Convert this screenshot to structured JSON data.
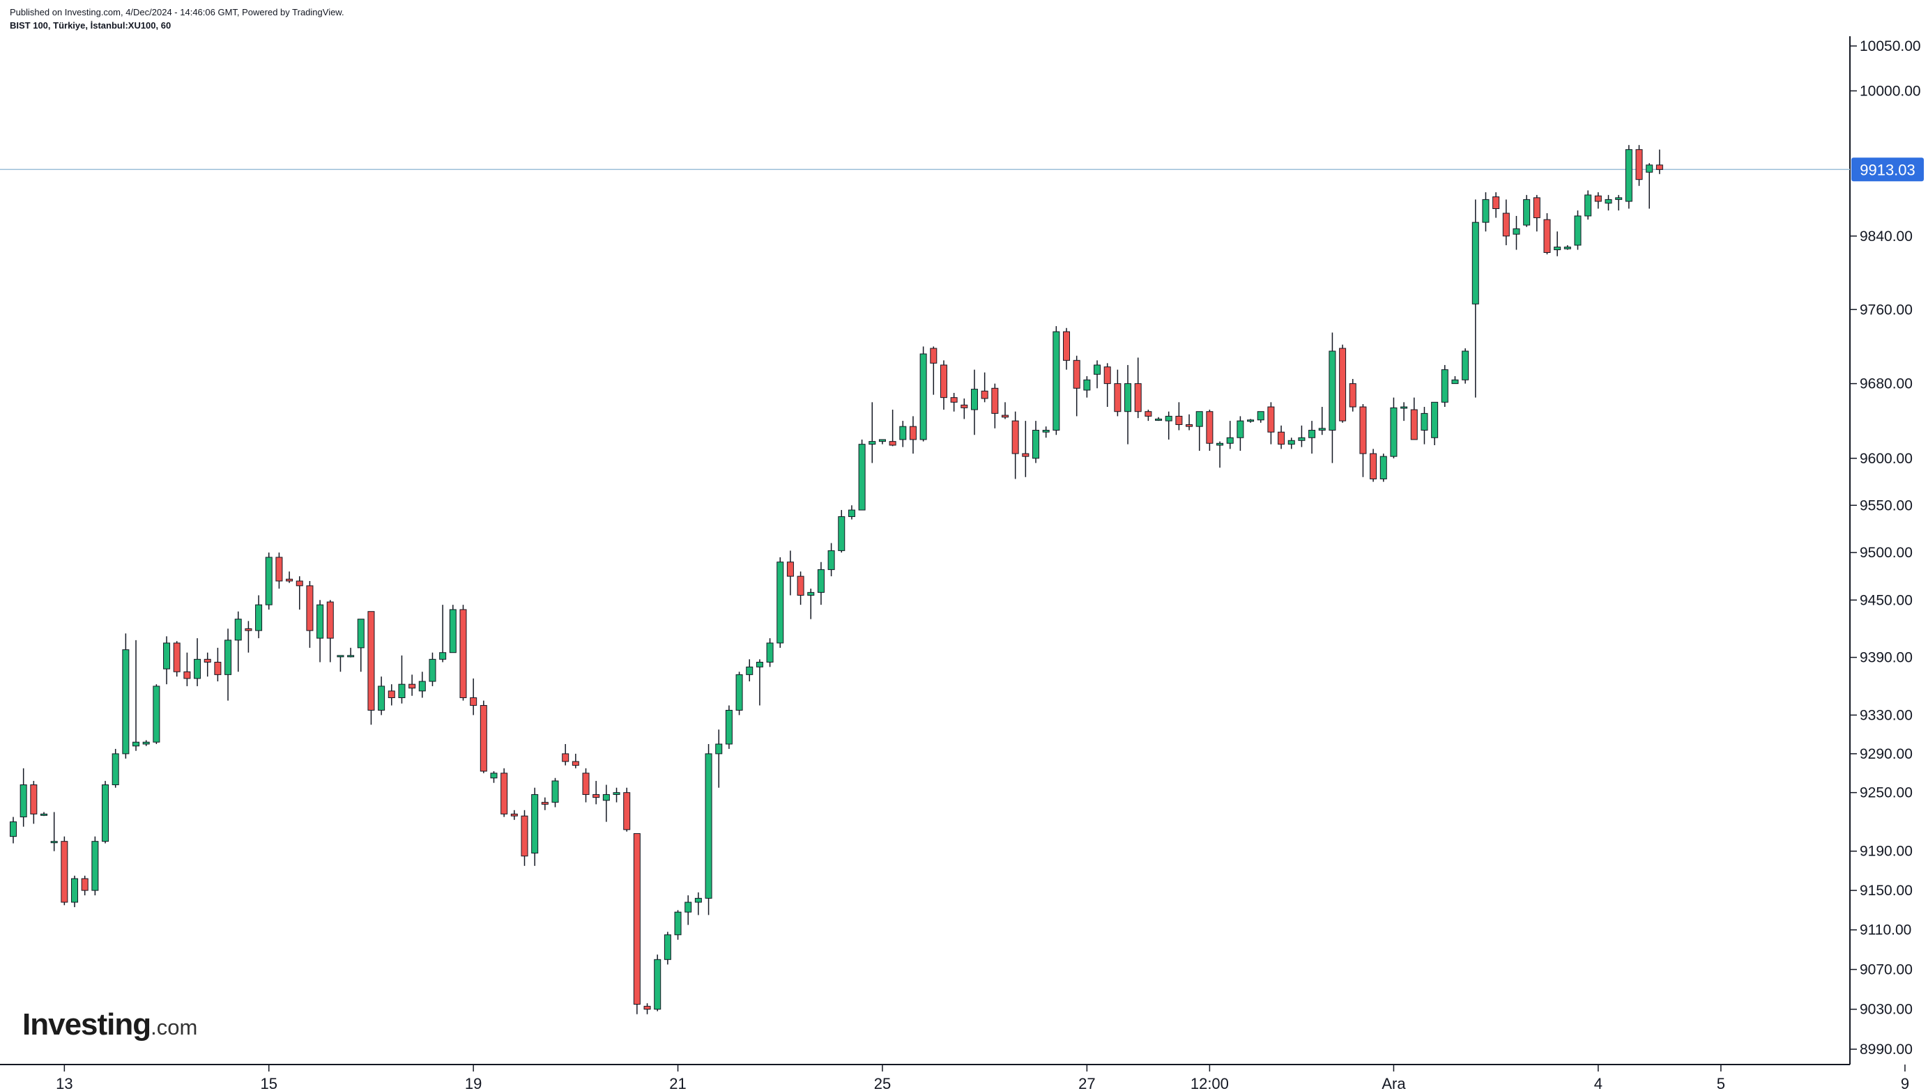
{
  "header": {
    "published": "Published on Investing.com, 4/Dec/2024 - 14:46:06 GMT, Powered by TradingView.",
    "symbol": "BIST 100, Türkiye, İstanbul:XU100, 60"
  },
  "logo": {
    "brand": "Investing",
    "tld": ".com"
  },
  "colors": {
    "up": "#1fb978",
    "down": "#ef5350",
    "wick": "#131722",
    "price_tag": "#2f6fe0",
    "price_line": "#9cbfd8"
  },
  "chart_data": {
    "type": "candlestick",
    "title": "",
    "price_scale": "log",
    "y_ticks": [
      "10050.00",
      "10000.00",
      "9840.00",
      "9760.00",
      "9680.00",
      "9600.00",
      "9550.00",
      "9500.00",
      "9450.00",
      "9390.00",
      "9330.00",
      "9290.00",
      "9250.00",
      "9190.00",
      "9150.00",
      "9110.00",
      "9070.00",
      "9030.00",
      "8990.00"
    ],
    "x_ticks": [
      "13",
      "15",
      "19",
      "21",
      "25",
      "27",
      "12:00",
      "Ara",
      "4",
      "5",
      "9"
    ],
    "x_tick_positions": [
      5,
      25,
      45,
      65,
      85,
      105,
      117,
      135,
      155,
      167,
      185
    ],
    "last_price": "9913.03",
    "ohlc": [
      [
        9205,
        9225,
        9198,
        9220
      ],
      [
        9225,
        9275,
        9215,
        9258
      ],
      [
        9258,
        9262,
        9218,
        9228
      ],
      [
        9228,
        9230,
        9226,
        9228
      ],
      [
        9200,
        9230,
        9190,
        9200
      ],
      [
        9200,
        9205,
        9135,
        9138
      ],
      [
        9138,
        9165,
        9133,
        9162
      ],
      [
        9162,
        9165,
        9145,
        9150
      ],
      [
        9150,
        9205,
        9145,
        9200
      ],
      [
        9200,
        9262,
        9198,
        9258
      ],
      [
        9258,
        9295,
        9255,
        9290
      ],
      [
        9290,
        9415,
        9285,
        9398
      ],
      [
        9298,
        9408,
        9293,
        9302
      ],
      [
        9300,
        9304,
        9298,
        9302
      ],
      [
        9302,
        9362,
        9300,
        9360
      ],
      [
        9378,
        9412,
        9362,
        9405
      ],
      [
        9405,
        9407,
        9370,
        9375
      ],
      [
        9375,
        9395,
        9360,
        9368
      ],
      [
        9368,
        9410,
        9360,
        9388
      ],
      [
        9388,
        9395,
        9370,
        9385
      ],
      [
        9385,
        9400,
        9365,
        9372
      ],
      [
        9372,
        9420,
        9345,
        9408
      ],
      [
        9408,
        9438,
        9375,
        9430
      ],
      [
        9420,
        9428,
        9395,
        9418
      ],
      [
        9418,
        9455,
        9410,
        9445
      ],
      [
        9445,
        9500,
        9440,
        9495
      ],
      [
        9495,
        9500,
        9462,
        9470
      ],
      [
        9472,
        9480,
        9468,
        9470
      ],
      [
        9470,
        9475,
        9440,
        9465
      ],
      [
        9465,
        9470,
        9400,
        9418
      ],
      [
        9410,
        9450,
        9385,
        9445
      ],
      [
        9448,
        9450,
        9385,
        9410
      ],
      [
        9392,
        9392,
        9375,
        9392
      ],
      [
        9392,
        9400,
        9390,
        9392
      ],
      [
        9400,
        9430,
        9375,
        9430
      ],
      [
        9438,
        9438,
        9320,
        9335
      ],
      [
        9335,
        9370,
        9330,
        9360
      ],
      [
        9355,
        9362,
        9340,
        9348
      ],
      [
        9348,
        9392,
        9342,
        9362
      ],
      [
        9362,
        9372,
        9350,
        9358
      ],
      [
        9355,
        9375,
        9348,
        9365
      ],
      [
        9365,
        9395,
        9360,
        9388
      ],
      [
        9388,
        9445,
        9385,
        9395
      ],
      [
        9395,
        9445,
        9395,
        9440
      ],
      [
        9440,
        9445,
        9345,
        9348
      ],
      [
        9348,
        9368,
        9330,
        9340
      ],
      [
        9340,
        9345,
        9270,
        9272
      ],
      [
        9265,
        9272,
        9260,
        9270
      ],
      [
        9270,
        9275,
        9225,
        9228
      ],
      [
        9228,
        9232,
        9222,
        9226
      ],
      [
        9226,
        9232,
        9175,
        9185
      ],
      [
        9188,
        9255,
        9175,
        9248
      ],
      [
        9240,
        9245,
        9232,
        9238
      ],
      [
        9240,
        9265,
        9235,
        9262
      ],
      [
        9290,
        9300,
        9278,
        9282
      ],
      [
        9282,
        9290,
        9275,
        9278
      ],
      [
        9270,
        9275,
        9240,
        9248
      ],
      [
        9248,
        9262,
        9238,
        9245
      ],
      [
        9242,
        9258,
        9220,
        9248
      ],
      [
        9248,
        9255,
        9240,
        9250
      ],
      [
        9250,
        9255,
        9210,
        9212
      ],
      [
        9208,
        9208,
        9025,
        9035
      ],
      [
        9033,
        9036,
        9025,
        9030
      ],
      [
        9030,
        9085,
        9028,
        9080
      ],
      [
        9080,
        9108,
        9075,
        9105
      ],
      [
        9105,
        9130,
        9100,
        9128
      ],
      [
        9128,
        9145,
        9115,
        9138
      ],
      [
        9138,
        9148,
        9125,
        9142
      ],
      [
        9142,
        9300,
        9125,
        9290
      ],
      [
        9290,
        9315,
        9255,
        9300
      ],
      [
        9300,
        9340,
        9295,
        9335
      ],
      [
        9335,
        9375,
        9330,
        9372
      ],
      [
        9372,
        9388,
        9365,
        9380
      ],
      [
        9380,
        9388,
        9340,
        9385
      ],
      [
        9385,
        9410,
        9380,
        9405
      ],
      [
        9405,
        9495,
        9400,
        9490
      ],
      [
        9490,
        9502,
        9455,
        9475
      ],
      [
        9475,
        9480,
        9445,
        9455
      ],
      [
        9455,
        9462,
        9430,
        9458
      ],
      [
        9458,
        9490,
        9445,
        9482
      ],
      [
        9482,
        9510,
        9475,
        9502
      ],
      [
        9502,
        9545,
        9500,
        9538
      ],
      [
        9538,
        9550,
        9535,
        9545
      ],
      [
        9545,
        9620,
        9545,
        9615
      ],
      [
        9615,
        9660,
        9595,
        9618
      ],
      [
        9618,
        9620,
        9615,
        9620
      ],
      [
        9618,
        9652,
        9613,
        9614
      ],
      [
        9620,
        9640,
        9612,
        9634
      ],
      [
        9634,
        9645,
        9605,
        9620
      ],
      [
        9620,
        9720,
        9618,
        9712
      ],
      [
        9718,
        9720,
        9668,
        9702
      ],
      [
        9700,
        9705,
        9652,
        9665
      ],
      [
        9665,
        9670,
        9650,
        9660
      ],
      [
        9657,
        9664,
        9642,
        9654
      ],
      [
        9652,
        9695,
        9625,
        9674
      ],
      [
        9672,
        9692,
        9660,
        9664
      ],
      [
        9675,
        9680,
        9632,
        9648
      ],
      [
        9646,
        9660,
        9642,
        9644
      ],
      [
        9640,
        9650,
        9578,
        9605
      ],
      [
        9605,
        9640,
        9580,
        9602
      ],
      [
        9600,
        9640,
        9595,
        9630
      ],
      [
        9628,
        9634,
        9622,
        9630
      ],
      [
        9630,
        9742,
        9625,
        9736
      ],
      [
        9736,
        9740,
        9695,
        9705
      ],
      [
        9705,
        9710,
        9645,
        9675
      ],
      [
        9673,
        9688,
        9665,
        9684
      ],
      [
        9690,
        9705,
        9675,
        9700
      ],
      [
        9698,
        9702,
        9655,
        9680
      ],
      [
        9680,
        9695,
        9645,
        9650
      ],
      [
        9650,
        9700,
        9615,
        9680
      ],
      [
        9680,
        9708,
        9643,
        9650
      ],
      [
        9650,
        9652,
        9640,
        9645
      ],
      [
        9642,
        9644,
        9640,
        9642
      ],
      [
        9640,
        9650,
        9620,
        9645
      ],
      [
        9645,
        9660,
        9630,
        9636
      ],
      [
        9636,
        9647,
        9630,
        9634
      ],
      [
        9634,
        9650,
        9608,
        9650
      ],
      [
        9650,
        9652,
        9608,
        9616
      ],
      [
        9614,
        9618,
        9590,
        9616
      ],
      [
        9616,
        9640,
        9610,
        9622
      ],
      [
        9622,
        9645,
        9608,
        9640
      ],
      [
        9640,
        9642,
        9638,
        9641
      ],
      [
        9641,
        9650,
        9638,
        9650
      ],
      [
        9655,
        9660,
        9615,
        9628
      ],
      [
        9628,
        9635,
        9610,
        9615
      ],
      [
        9615,
        9622,
        9610,
        9619
      ],
      [
        9619,
        9635,
        9612,
        9622
      ],
      [
        9622,
        9640,
        9605,
        9630
      ],
      [
        9630,
        9655,
        9625,
        9632
      ],
      [
        9630,
        9735,
        9595,
        9715
      ],
      [
        9718,
        9722,
        9638,
        9640
      ],
      [
        9680,
        9685,
        9650,
        9655
      ],
      [
        9655,
        9658,
        9580,
        9605
      ],
      [
        9605,
        9610,
        9575,
        9578
      ],
      [
        9578,
        9605,
        9575,
        9602
      ],
      [
        9602,
        9665,
        9600,
        9654
      ],
      [
        9654,
        9660,
        9640,
        9655
      ],
      [
        9652,
        9665,
        9620,
        9620
      ],
      [
        9630,
        9655,
        9615,
        9648
      ],
      [
        9622,
        9660,
        9614,
        9660
      ],
      [
        9660,
        9700,
        9655,
        9695
      ],
      [
        9680,
        9688,
        9680,
        9684
      ],
      [
        9684,
        9718,
        9680,
        9715
      ],
      [
        9766,
        9880,
        9665,
        9855
      ],
      [
        9855,
        9888,
        9845,
        9880
      ],
      [
        9883,
        9888,
        9860,
        9870
      ],
      [
        9865,
        9880,
        9830,
        9840
      ],
      [
        9842,
        9862,
        9825,
        9848
      ],
      [
        9852,
        9885,
        9850,
        9880
      ],
      [
        9882,
        9885,
        9845,
        9860
      ],
      [
        9858,
        9865,
        9820,
        9822
      ],
      [
        9825,
        9845,
        9818,
        9828
      ],
      [
        9826,
        9830,
        9825,
        9828
      ],
      [
        9830,
        9868,
        9825,
        9862
      ],
      [
        9862,
        9890,
        9858,
        9885
      ],
      [
        9884,
        9888,
        9870,
        9878
      ],
      [
        9876,
        9885,
        9868,
        9880
      ],
      [
        9880,
        9885,
        9868,
        9882
      ],
      [
        9878,
        9940,
        9870,
        9935
      ],
      [
        9935,
        9940,
        9895,
        9902
      ],
      [
        9910,
        9920,
        9870,
        9918
      ],
      [
        9918,
        9935,
        9908,
        9913
      ]
    ]
  }
}
